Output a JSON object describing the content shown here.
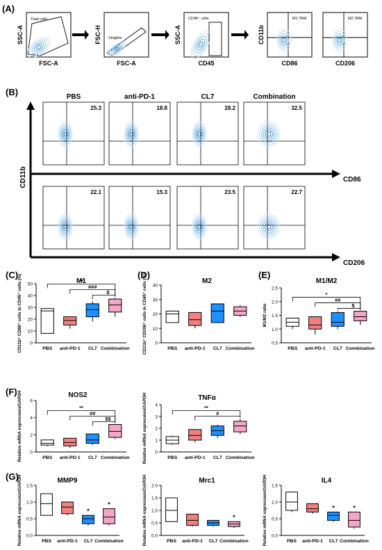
{
  "panels": {
    "A": "(A)",
    "B": "(B)",
    "C": "(C)",
    "D": "(D)",
    "E": "(E)",
    "F": "(F)",
    "G": "(G)"
  },
  "colors": {
    "PBS": "#ffffff",
    "anti-PD-1": "#f08080",
    "CL7": "#1e90ff",
    "Combination": "#f4a6c8",
    "contour": "#4a9fd5",
    "stroke": "#000000"
  },
  "gating": [
    {
      "ylabel": "SSC-A",
      "xlabel": "FSC-A",
      "gate": "Total cells"
    },
    {
      "ylabel": "FSC-H",
      "xlabel": "FSC-A",
      "gate": "Singlets"
    },
    {
      "ylabel": "SSC-A",
      "xlabel": "CD45",
      "gate": "CD45⁺ cells"
    },
    {
      "ylabel": "CD11b",
      "xlabel": "CD86",
      "gate": "M1 TAM"
    },
    {
      "ylabel": "",
      "xlabel": "CD206",
      "gate": "M2 TAM"
    }
  ],
  "flow": {
    "groups": [
      "PBS",
      "anti-PD-1",
      "CL7",
      "Combination"
    ],
    "yaxis": "CD11b",
    "row1": {
      "xaxis": "CD86",
      "values": [
        "25.3",
        "18.8",
        "28.2",
        "32.5"
      ]
    },
    "row2": {
      "xaxis": "CD206",
      "values": [
        "22.1",
        "15.3",
        "23.5",
        "22.7"
      ]
    }
  },
  "chart_data": [
    {
      "panel": "C",
      "type": "box",
      "title": "M1",
      "ylabel": "CD11b⁺ CD86⁺ cells in CD45⁺ cells (%)",
      "ylim": [
        0,
        50
      ],
      "yticks": [
        0,
        10,
        20,
        30,
        40,
        50
      ],
      "categories": [
        "PBS",
        "anti-PD-1",
        "CL7",
        "Combination"
      ],
      "boxes": [
        {
          "min": 8,
          "q1": 8,
          "median": 27,
          "q3": 29,
          "max": 29
        },
        {
          "min": 12,
          "q1": 15,
          "median": 19,
          "q3": 22,
          "max": 22
        },
        {
          "min": 18,
          "q1": 22,
          "median": 28,
          "q3": 33,
          "max": 35
        },
        {
          "min": 22,
          "q1": 26,
          "median": 32,
          "q3": 37,
          "max": 38
        }
      ],
      "sig": [
        {
          "from": 0,
          "to": 3,
          "label": "**"
        },
        {
          "from": 1,
          "to": 3,
          "label": "###"
        },
        {
          "from": 2,
          "to": 3,
          "label": "$"
        }
      ]
    },
    {
      "panel": "D",
      "type": "box",
      "title": "M2",
      "ylabel": "CD11b⁺ CD206⁺ cells in CD45⁺ cells (%)",
      "ylim": [
        0,
        40
      ],
      "yticks": [
        0,
        10,
        20,
        30,
        40
      ],
      "categories": [
        "PBS",
        "anti-PD-1",
        "CL7",
        "Combination"
      ],
      "boxes": [
        {
          "min": 14,
          "q1": 14,
          "median": 20,
          "q3": 22,
          "max": 22
        },
        {
          "min": 10,
          "q1": 12,
          "median": 16,
          "q3": 21,
          "max": 21
        },
        {
          "min": 14,
          "q1": 14,
          "median": 22,
          "q3": 27,
          "max": 27
        },
        {
          "min": 18,
          "q1": 19,
          "median": 22,
          "q3": 25,
          "max": 26
        }
      ],
      "sig": []
    },
    {
      "panel": "E",
      "type": "box",
      "title": "M1/M2",
      "ylabel": "M1/M2 ratio",
      "ylim": [
        0.5,
        2.5
      ],
      "yticks": [
        0.5,
        1.0,
        1.5,
        2.0,
        2.5
      ],
      "categories": [
        "PBS",
        "anti-PD-1",
        "CL7",
        "Combination"
      ],
      "boxes": [
        {
          "min": 1.0,
          "q1": 1.1,
          "median": 1.25,
          "q3": 1.4,
          "max": 1.4
        },
        {
          "min": 0.8,
          "q1": 1.0,
          "median": 1.15,
          "q3": 1.45,
          "max": 1.45
        },
        {
          "min": 1.0,
          "q1": 1.1,
          "median": 1.25,
          "q3": 1.6,
          "max": 1.65
        },
        {
          "min": 1.15,
          "q1": 1.3,
          "median": 1.45,
          "q3": 1.65,
          "max": 1.65
        }
      ],
      "sig": [
        {
          "from": 0,
          "to": 3,
          "label": "*"
        },
        {
          "from": 1,
          "to": 3,
          "label": "##"
        },
        {
          "from": 2,
          "to": 3,
          "label": "$"
        }
      ]
    },
    {
      "panel": "F",
      "type": "box",
      "title": "NOS2",
      "ylabel": "Relative mRNA expression/GAPDH",
      "ylim": [
        0,
        6
      ],
      "yticks": [
        0,
        2,
        4,
        6
      ],
      "categories": [
        "PBS",
        "anti-PD-1",
        "CL7",
        "Combination"
      ],
      "boxes": [
        {
          "min": 0.7,
          "q1": 0.8,
          "median": 1.0,
          "q3": 1.4,
          "max": 1.4
        },
        {
          "min": 0.5,
          "q1": 0.7,
          "median": 1.1,
          "q3": 1.6,
          "max": 1.6
        },
        {
          "min": 0.8,
          "q1": 1.0,
          "median": 1.4,
          "q3": 2.1,
          "max": 2.1
        },
        {
          "min": 1.5,
          "q1": 1.7,
          "median": 2.4,
          "q3": 3.2,
          "max": 3.2
        }
      ],
      "sig": [
        {
          "from": 0,
          "to": 3,
          "label": "**"
        },
        {
          "from": 1,
          "to": 3,
          "label": "##"
        },
        {
          "from": 2,
          "to": 3,
          "label": "$$"
        }
      ]
    },
    {
      "panel": "F2",
      "type": "box",
      "title": "TNFα",
      "ylabel": "Relative mRNA expression/GAPDH",
      "ylim": [
        0,
        4
      ],
      "yticks": [
        0,
        1,
        2,
        3,
        4
      ],
      "categories": [
        "PBS",
        "anti-PD-1",
        "CL7",
        "Combination"
      ],
      "boxes": [
        {
          "min": 0.6,
          "q1": 0.7,
          "median": 1.0,
          "q3": 1.3,
          "max": 1.4
        },
        {
          "min": 0.8,
          "q1": 1.0,
          "median": 1.4,
          "q3": 1.9,
          "max": 1.9
        },
        {
          "min": 1.2,
          "q1": 1.4,
          "median": 1.8,
          "q3": 2.2,
          "max": 2.3
        },
        {
          "min": 1.5,
          "q1": 1.7,
          "median": 2.2,
          "q3": 2.6,
          "max": 2.8
        }
      ],
      "sig": [
        {
          "from": 0,
          "to": 3,
          "label": "**"
        },
        {
          "from": 1,
          "to": 3,
          "label": "#"
        }
      ]
    },
    {
      "panel": "G1",
      "type": "box",
      "title": "MMP9",
      "ylabel": "Relative mRNA expression/GAPDH",
      "ylim": [
        0,
        1.5
      ],
      "yticks": [
        0.0,
        0.5,
        1.0,
        1.5
      ],
      "categories": [
        "PBS",
        "anti-PD-1",
        "CL7",
        "Combination"
      ],
      "boxes": [
        {
          "min": 0.6,
          "q1": 0.6,
          "median": 0.95,
          "q3": 1.25,
          "max": 1.25
        },
        {
          "min": 0.6,
          "q1": 0.65,
          "median": 0.85,
          "q3": 1.0,
          "max": 1.0
        },
        {
          "min": 0.3,
          "q1": 0.35,
          "median": 0.5,
          "q3": 0.6,
          "max": 0.6
        },
        {
          "min": 0.3,
          "q1": 0.35,
          "median": 0.55,
          "q3": 0.8,
          "max": 0.8
        }
      ],
      "stars": [
        "",
        "",
        "*",
        "*"
      ]
    },
    {
      "panel": "G2",
      "type": "box",
      "title": "Mrc1",
      "ylabel": "Relative mRNA expression/GAPDH",
      "ylim": [
        0,
        2.0
      ],
      "yticks": [
        0.0,
        0.5,
        1.0,
        1.5,
        2.0
      ],
      "categories": [
        "PBS",
        "anti-PD-1",
        "CL7",
        "Combination"
      ],
      "boxes": [
        {
          "min": 0.55,
          "q1": 0.55,
          "median": 1.0,
          "q3": 1.5,
          "max": 1.5
        },
        {
          "min": 0.35,
          "q1": 0.4,
          "median": 0.6,
          "q3": 0.85,
          "max": 0.85
        },
        {
          "min": 0.35,
          "q1": 0.4,
          "median": 0.5,
          "q3": 0.6,
          "max": 0.6
        },
        {
          "min": 0.3,
          "q1": 0.35,
          "median": 0.45,
          "q3": 0.55,
          "max": 0.55
        }
      ],
      "stars": [
        "",
        "",
        "",
        "*"
      ]
    },
    {
      "panel": "G3",
      "type": "box",
      "title": "IL4",
      "ylabel": "Relative mRNA expression/GAPDH",
      "ylim": [
        0,
        1.5
      ],
      "yticks": [
        0.0,
        0.5,
        1.0,
        1.5
      ],
      "categories": [
        "PBS",
        "anti-PD-1",
        "CL7",
        "Combination"
      ],
      "boxes": [
        {
          "min": 0.7,
          "q1": 0.75,
          "median": 1.0,
          "q3": 1.3,
          "max": 1.3
        },
        {
          "min": 0.65,
          "q1": 0.7,
          "median": 0.8,
          "q3": 0.95,
          "max": 0.95
        },
        {
          "min": 0.4,
          "q1": 0.45,
          "median": 0.6,
          "q3": 0.7,
          "max": 0.7
        },
        {
          "min": 0.2,
          "q1": 0.25,
          "median": 0.45,
          "q3": 0.7,
          "max": 0.7
        }
      ],
      "stars": [
        "",
        "",
        "*",
        "*"
      ]
    }
  ]
}
